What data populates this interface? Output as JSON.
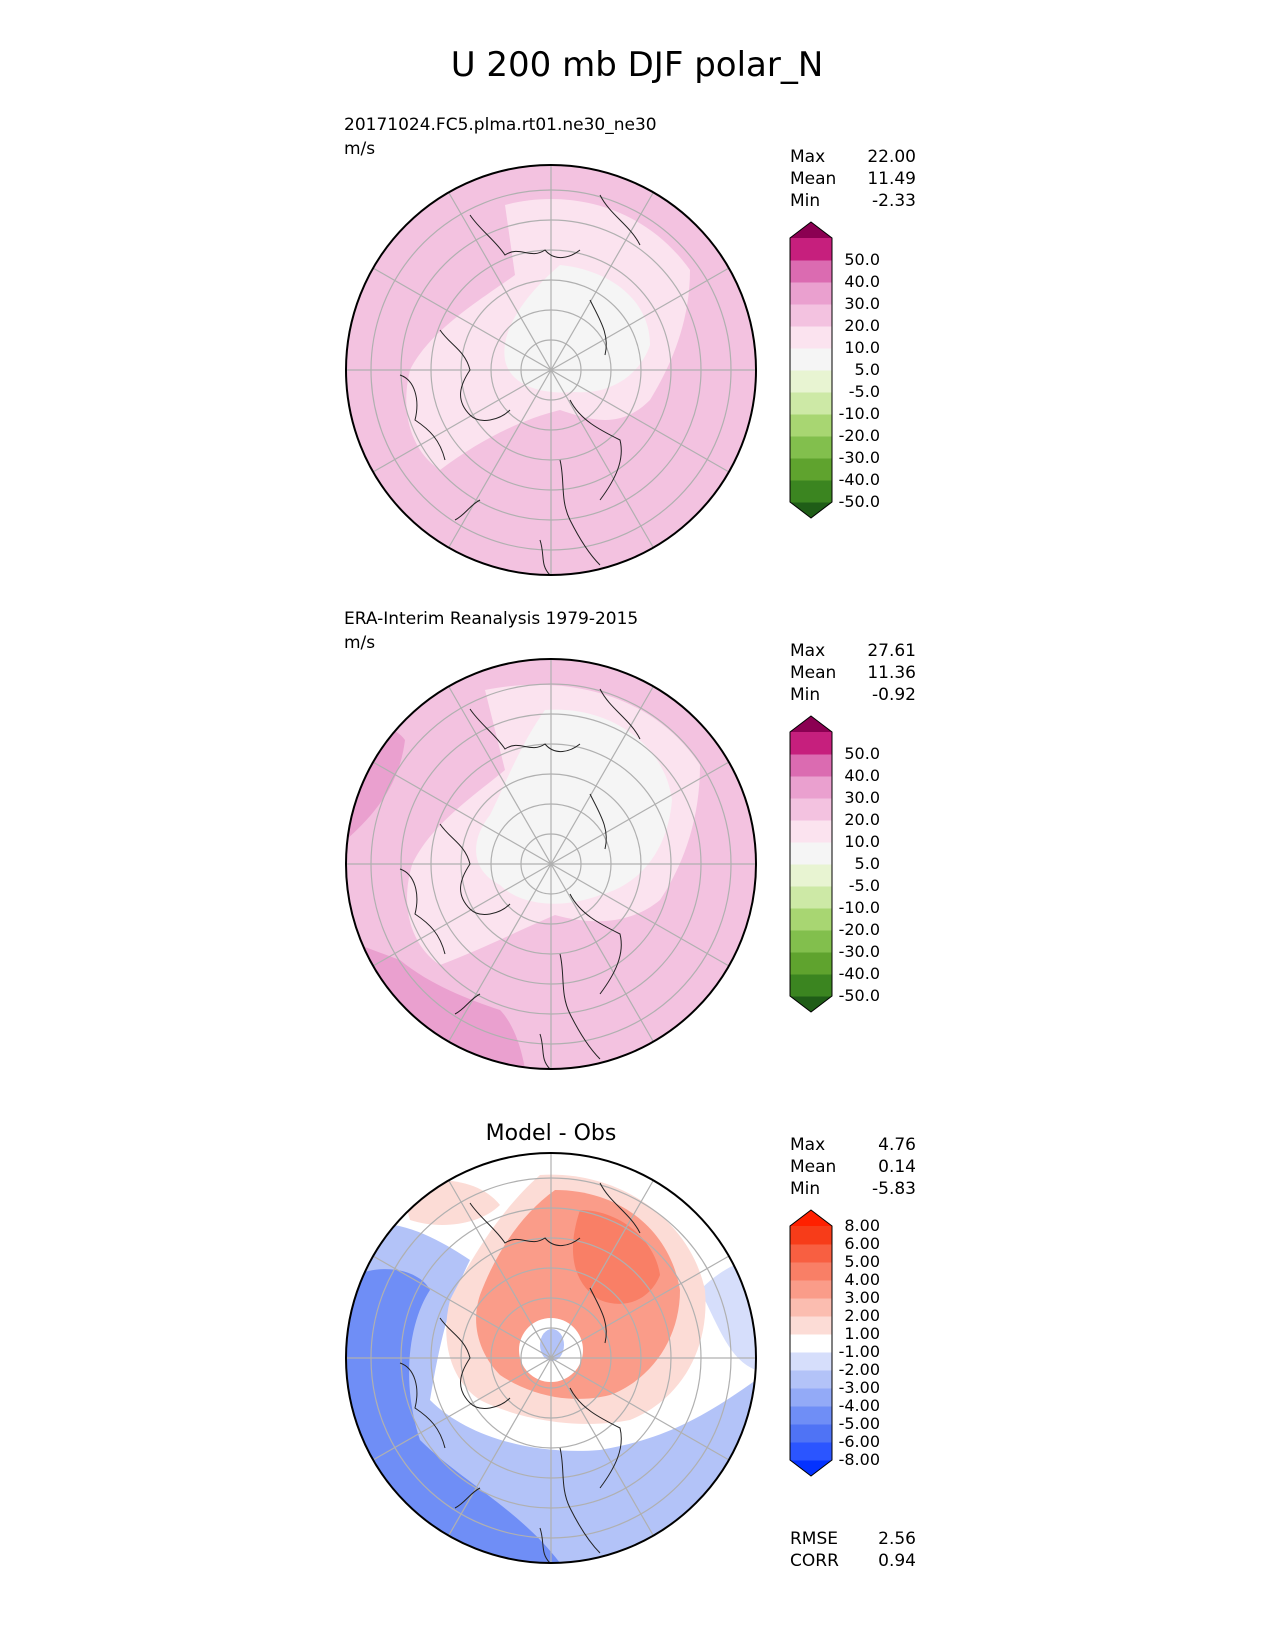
{
  "title": "U 200 mb DJF polar_N",
  "panels": [
    {
      "name": "model",
      "label": "20171024.FC5.plma.rt01.ne30_ne30",
      "units": "m/s",
      "heading": "",
      "stats": [
        {
          "label": "Max",
          "value": "22.00"
        },
        {
          "label": "Mean",
          "value": "11.49"
        },
        {
          "label": "Min",
          "value": "-2.33"
        }
      ],
      "colorbar": {
        "colors": [
          "#1f5d17",
          "#3b8520",
          "#5fa32e",
          "#82bf4d",
          "#a8d672",
          "#cde9a6",
          "#e8f4d2",
          "#f5f5f5",
          "#fbe3ef",
          "#f3c2e0",
          "#eaa0cf",
          "#db6bb1",
          "#c61f7d",
          "#8b0052"
        ],
        "ticks": [
          "-50.0",
          "-40.0",
          "-30.0",
          "-20.0",
          "-10.0",
          "-5.0",
          "5.0",
          "10.0",
          "20.0",
          "30.0",
          "40.0",
          "50.0"
        ]
      }
    },
    {
      "name": "obs",
      "label": "ERA-Interim Reanalysis 1979-2015",
      "units": "m/s",
      "heading": "",
      "stats": [
        {
          "label": "Max",
          "value": "27.61"
        },
        {
          "label": "Mean",
          "value": "11.36"
        },
        {
          "label": "Min",
          "value": "-0.92"
        }
      ],
      "colorbar": {
        "colors": [
          "#1f5d17",
          "#3b8520",
          "#5fa32e",
          "#82bf4d",
          "#a8d672",
          "#cde9a6",
          "#e8f4d2",
          "#f5f5f5",
          "#fbe3ef",
          "#f3c2e0",
          "#eaa0cf",
          "#db6bb1",
          "#c61f7d",
          "#8b0052"
        ],
        "ticks": [
          "-50.0",
          "-40.0",
          "-30.0",
          "-20.0",
          "-10.0",
          "-5.0",
          "5.0",
          "10.0",
          "20.0",
          "30.0",
          "40.0",
          "50.0"
        ]
      }
    },
    {
      "name": "diff",
      "label": "",
      "units": "",
      "heading": "Model - Obs",
      "stats": [
        {
          "label": "Max",
          "value": "4.76"
        },
        {
          "label": "Mean",
          "value": "0.14"
        },
        {
          "label": "Min",
          "value": "-5.83"
        }
      ],
      "extra_stats": [
        {
          "label": "RMSE",
          "value": "2.56"
        },
        {
          "label": "CORR",
          "value": "0.94"
        }
      ],
      "colorbar": {
        "colors": [
          "#0432ff",
          "#2b55ff",
          "#4f73f5",
          "#6f8ef6",
          "#93aaf7",
          "#b3c3f8",
          "#d6defb",
          "#ffffff",
          "#fcdcd6",
          "#fbbdb0",
          "#fa9c89",
          "#f97f66",
          "#f85f41",
          "#f73c19",
          "#ff2000"
        ],
        "ticks": [
          "-8.00",
          "-6.00",
          "-5.00",
          "-4.00",
          "-3.00",
          "-2.00",
          "-1.00",
          "1.00",
          "2.00",
          "3.00",
          "4.00",
          "5.00",
          "6.00",
          "8.00"
        ]
      }
    }
  ]
}
